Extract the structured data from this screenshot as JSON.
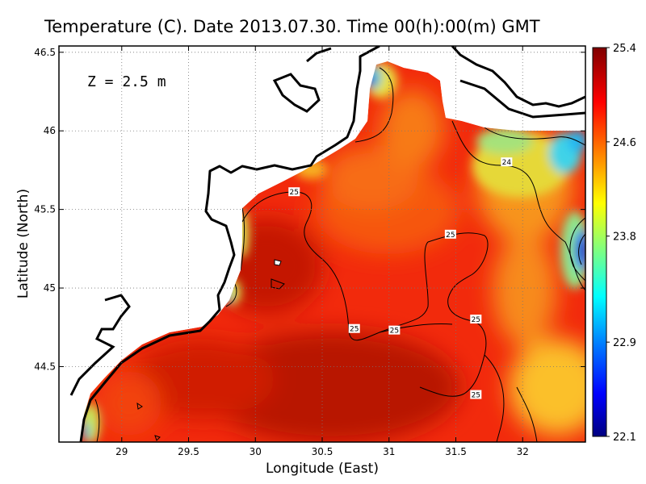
{
  "chart_data": {
    "type": "heatmap",
    "title": "Temperature (C). Date 2013.07.30. Time 00(h):00(m) GMT",
    "xlabel": "Longitude (East)",
    "ylabel": "Latitude (North)",
    "annotation": "Z = 2.5 m",
    "xlim": [
      28.53,
      32.47
    ],
    "ylim": [
      44.02,
      46.54
    ],
    "x_ticks": [
      29,
      29.5,
      30,
      30.5,
      31,
      31.5,
      32
    ],
    "y_ticks": [
      44.5,
      45,
      45.5,
      46,
      46.5
    ],
    "grid": true,
    "colorbar": {
      "min": 22.1,
      "max": 25.4,
      "ticks": [
        25.4,
        24.6,
        23.8,
        22.9,
        22.1
      ],
      "colors": [
        "#00007f",
        "#0000ff",
        "#007fff",
        "#00ffff",
        "#7fff7f",
        "#ffff00",
        "#ff7f00",
        "#ff0000",
        "#7f0000"
      ]
    },
    "contour_labels": [
      {
        "text": "25",
        "lon": 30.29,
        "lat": 45.61
      },
      {
        "text": "25",
        "lon": 31.46,
        "lat": 45.34
      },
      {
        "text": "25",
        "lon": 30.74,
        "lat": 44.74
      },
      {
        "text": "25",
        "lon": 31.04,
        "lat": 44.73
      },
      {
        "text": "25",
        "lon": 31.65,
        "lat": 44.8
      },
      {
        "text": "25",
        "lon": 31.65,
        "lat": 44.32
      },
      {
        "text": "24",
        "lon": 31.88,
        "lat": 45.8
      }
    ]
  }
}
